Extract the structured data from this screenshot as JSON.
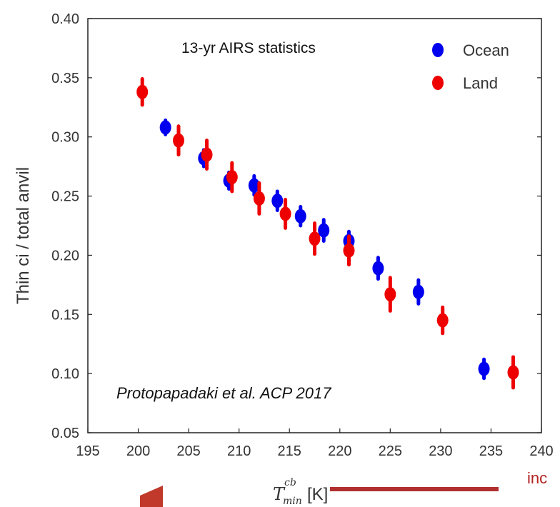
{
  "chart_data": {
    "type": "scatter",
    "xlabel_main": "T",
    "xlabel_sup": "cb",
    "xlabel_sub": "min",
    "xlabel_unit": "[K]",
    "ylabel": "Thin ci / total anvil",
    "xlim": [
      195,
      240
    ],
    "ylim": [
      0.05,
      0.4
    ],
    "xticks": [
      "195",
      "200",
      "205",
      "210",
      "215",
      "220",
      "225",
      "230",
      "235",
      "240"
    ],
    "yticks": [
      "0.05",
      "0.10",
      "0.15",
      "0.20",
      "0.25",
      "0.30",
      "0.35",
      "0.40"
    ],
    "grid": false,
    "legend_position": "top-right",
    "annotations": {
      "stats": "13-yr AIRS statistics",
      "citation": "Protopapadaki et al. ACP 2017",
      "clipped_text": "inc"
    },
    "series": [
      {
        "name": "Ocean",
        "color": "#0000ee",
        "points": [
          {
            "x": 202.7,
            "y": 0.308,
            "err": 0.006
          },
          {
            "x": 206.5,
            "y": 0.282,
            "err": 0.007
          },
          {
            "x": 209.0,
            "y": 0.263,
            "err": 0.007
          },
          {
            "x": 211.5,
            "y": 0.259,
            "err": 0.008
          },
          {
            "x": 213.8,
            "y": 0.246,
            "err": 0.008
          },
          {
            "x": 216.1,
            "y": 0.233,
            "err": 0.008
          },
          {
            "x": 218.4,
            "y": 0.221,
            "err": 0.009
          },
          {
            "x": 220.9,
            "y": 0.212,
            "err": 0.008
          },
          {
            "x": 223.8,
            "y": 0.189,
            "err": 0.009
          },
          {
            "x": 227.8,
            "y": 0.169,
            "err": 0.01
          },
          {
            "x": 234.3,
            "y": 0.104,
            "err": 0.008
          }
        ]
      },
      {
        "name": "Land",
        "color": "#ee0000",
        "points": [
          {
            "x": 200.4,
            "y": 0.338,
            "err": 0.011
          },
          {
            "x": 204.0,
            "y": 0.297,
            "err": 0.012
          },
          {
            "x": 206.8,
            "y": 0.285,
            "err": 0.012
          },
          {
            "x": 209.3,
            "y": 0.266,
            "err": 0.012
          },
          {
            "x": 212.0,
            "y": 0.248,
            "err": 0.013
          },
          {
            "x": 214.6,
            "y": 0.235,
            "err": 0.012
          },
          {
            "x": 217.5,
            "y": 0.214,
            "err": 0.013
          },
          {
            "x": 220.9,
            "y": 0.204,
            "err": 0.012
          },
          {
            "x": 225.0,
            "y": 0.167,
            "err": 0.014
          },
          {
            "x": 230.2,
            "y": 0.145,
            "err": 0.011
          },
          {
            "x": 237.2,
            "y": 0.101,
            "err": 0.013
          }
        ]
      }
    ]
  }
}
